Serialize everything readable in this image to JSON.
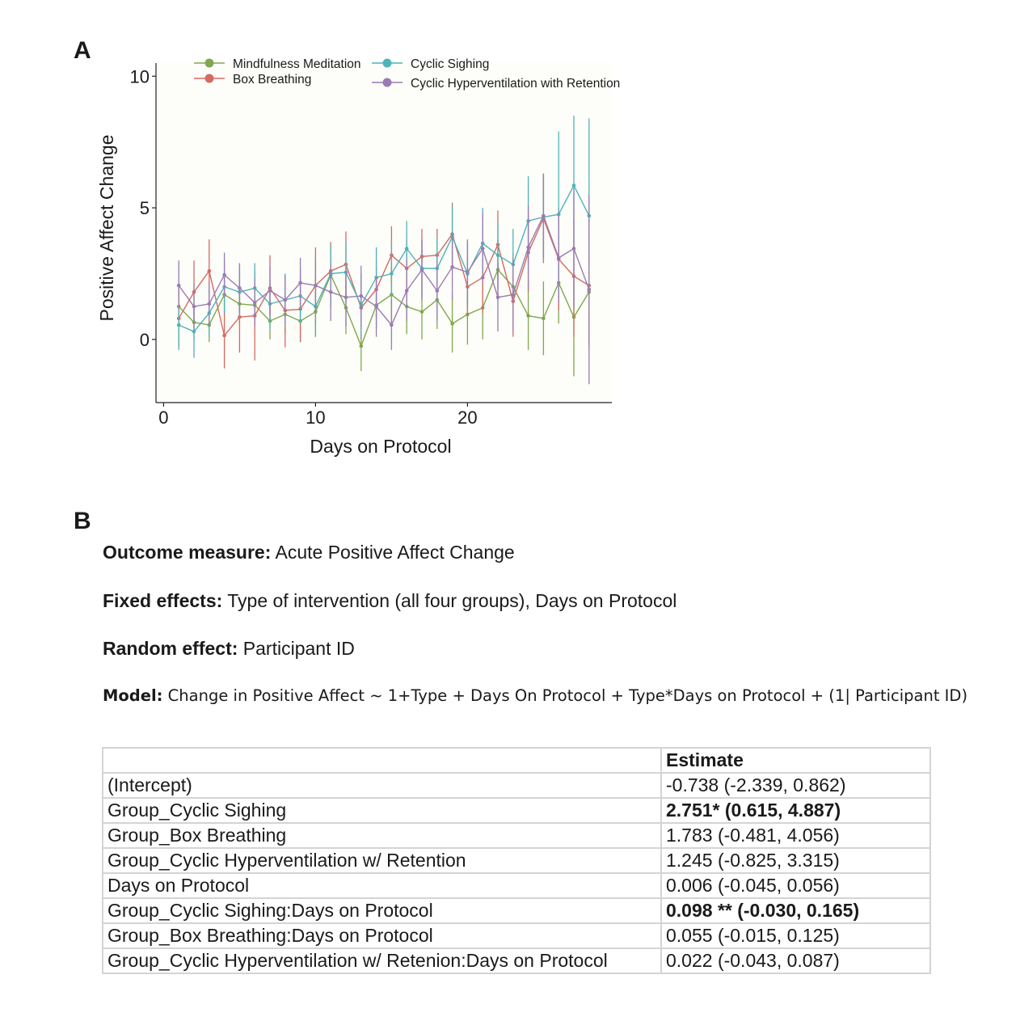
{
  "panel_a_label": "A",
  "panel_b_label": "B",
  "chart_data": {
    "type": "line",
    "xlabel": "Days on Protocol",
    "ylabel": "Positive Affect Change",
    "xlim": [
      -0.5,
      29.5
    ],
    "ylim": [
      -2.4,
      10.5
    ],
    "xticks": [
      0,
      10,
      20
    ],
    "yticks": [
      0,
      5,
      10
    ],
    "grid": false,
    "legend_position": "top",
    "error_bars": true,
    "series": [
      {
        "name": "Mindfulness Meditation",
        "color": "#7fa84f",
        "points": [
          {
            "x": 1,
            "y": 1.25,
            "lo": 0.3,
            "hi": 2.0
          },
          {
            "x": 2,
            "y": 0.65,
            "lo": 0.0,
            "hi": 1.3
          },
          {
            "x": 3,
            "y": 0.55,
            "lo": -0.1,
            "hi": 1.2
          },
          {
            "x": 4,
            "y": 1.7,
            "lo": 0.9,
            "hi": 2.5
          },
          {
            "x": 5,
            "y": 1.35,
            "lo": 0.6,
            "hi": 2.1
          },
          {
            "x": 6,
            "y": 1.3,
            "lo": 0.5,
            "hi": 2.0
          },
          {
            "x": 7,
            "y": 0.7,
            "lo": 0.0,
            "hi": 1.4
          },
          {
            "x": 8,
            "y": 0.95,
            "lo": 0.2,
            "hi": 1.7
          },
          {
            "x": 9,
            "y": 0.7,
            "lo": -0.1,
            "hi": 1.4
          },
          {
            "x": 10,
            "y": 1.05,
            "lo": 0.1,
            "hi": 2.0
          },
          {
            "x": 11,
            "y": 2.45,
            "lo": 1.2,
            "hi": 3.6
          },
          {
            "x": 12,
            "y": 1.2,
            "lo": 0.2,
            "hi": 2.2
          },
          {
            "x": 13,
            "y": -0.25,
            "lo": -1.2,
            "hi": 0.8
          },
          {
            "x": 14,
            "y": 1.3,
            "lo": 0.4,
            "hi": 2.2
          },
          {
            "x": 15,
            "y": 1.7,
            "lo": 0.6,
            "hi": 2.8
          },
          {
            "x": 16,
            "y": 1.25,
            "lo": 0.2,
            "hi": 2.3
          },
          {
            "x": 17,
            "y": 1.05,
            "lo": 0.0,
            "hi": 2.1
          },
          {
            "x": 18,
            "y": 1.5,
            "lo": 0.4,
            "hi": 2.6
          },
          {
            "x": 19,
            "y": 0.6,
            "lo": -0.5,
            "hi": 1.7
          },
          {
            "x": 20,
            "y": 0.95,
            "lo": -0.2,
            "hi": 2.1
          },
          {
            "x": 21,
            "y": 1.2,
            "lo": 0.0,
            "hi": 2.4
          },
          {
            "x": 22,
            "y": 2.65,
            "lo": 1.5,
            "hi": 3.8
          },
          {
            "x": 23,
            "y": 2.0,
            "lo": 0.7,
            "hi": 3.3
          },
          {
            "x": 24,
            "y": 0.9,
            "lo": -0.4,
            "hi": 2.2
          },
          {
            "x": 25,
            "y": 0.8,
            "lo": -0.6,
            "hi": 2.2
          },
          {
            "x": 26,
            "y": 2.15,
            "lo": 0.6,
            "hi": 3.7
          },
          {
            "x": 27,
            "y": 0.85,
            "lo": -1.4,
            "hi": 3.1
          },
          {
            "x": 28,
            "y": 1.8,
            "lo": -0.4,
            "hi": 4.0
          }
        ]
      },
      {
        "name": "Box Breathing",
        "color": "#d46a63",
        "points": [
          {
            "x": 1,
            "y": 0.8,
            "lo": -0.3,
            "hi": 1.9
          },
          {
            "x": 2,
            "y": 1.8,
            "lo": 0.6,
            "hi": 3.0
          },
          {
            "x": 3,
            "y": 2.6,
            "lo": 1.4,
            "hi": 3.8
          },
          {
            "x": 4,
            "y": 0.15,
            "lo": -1.1,
            "hi": 1.4
          },
          {
            "x": 5,
            "y": 0.85,
            "lo": -0.5,
            "hi": 2.2
          },
          {
            "x": 6,
            "y": 0.9,
            "lo": -0.8,
            "hi": 2.6
          },
          {
            "x": 7,
            "y": 1.95,
            "lo": 0.7,
            "hi": 3.2
          },
          {
            "x": 8,
            "y": 1.1,
            "lo": -0.3,
            "hi": 2.5
          },
          {
            "x": 9,
            "y": 1.15,
            "lo": -0.1,
            "hi": 2.4
          },
          {
            "x": 10,
            "y": 2.05,
            "lo": 0.6,
            "hi": 3.5
          },
          {
            "x": 11,
            "y": 2.6,
            "lo": 1.5,
            "hi": 3.7
          },
          {
            "x": 12,
            "y": 2.85,
            "lo": 1.6,
            "hi": 4.1
          },
          {
            "x": 13,
            "y": 1.2,
            "lo": 0.0,
            "hi": 2.4
          },
          {
            "x": 14,
            "y": 1.9,
            "lo": 0.8,
            "hi": 3.0
          },
          {
            "x": 15,
            "y": 3.2,
            "lo": 2.1,
            "hi": 4.3
          },
          {
            "x": 16,
            "y": 2.7,
            "lo": 1.6,
            "hi": 3.8
          },
          {
            "x": 17,
            "y": 3.15,
            "lo": 2.1,
            "hi": 4.2
          },
          {
            "x": 18,
            "y": 3.2,
            "lo": 2.2,
            "hi": 4.2
          },
          {
            "x": 19,
            "y": 4.0,
            "lo": 2.8,
            "hi": 5.2
          },
          {
            "x": 20,
            "y": 2.0,
            "lo": 0.8,
            "hi": 3.2
          },
          {
            "x": 21,
            "y": 2.35,
            "lo": 1.0,
            "hi": 3.7
          },
          {
            "x": 22,
            "y": 3.6,
            "lo": 2.3,
            "hi": 4.9
          },
          {
            "x": 23,
            "y": 1.45,
            "lo": 0.1,
            "hi": 2.8
          },
          {
            "x": 24,
            "y": 3.3,
            "lo": 1.8,
            "hi": 4.8
          },
          {
            "x": 25,
            "y": 4.6,
            "lo": 2.9,
            "hi": 6.3
          },
          {
            "x": 26,
            "y": 3.05,
            "lo": 1.1,
            "hi": 5.0
          },
          {
            "x": 27,
            "y": 2.4,
            "lo": 0.1,
            "hi": 4.6
          },
          {
            "x": 28,
            "y": 2.05,
            "lo": -0.2,
            "hi": 4.3
          }
        ]
      },
      {
        "name": "Cyclic Sighing",
        "color": "#4fb3b8",
        "points": [
          {
            "x": 1,
            "y": 0.55,
            "lo": -0.4,
            "hi": 1.5
          },
          {
            "x": 2,
            "y": 0.3,
            "lo": -0.7,
            "hi": 1.3
          },
          {
            "x": 3,
            "y": 1.0,
            "lo": 0.1,
            "hi": 1.9
          },
          {
            "x": 4,
            "y": 2.0,
            "lo": 1.0,
            "hi": 3.0
          },
          {
            "x": 5,
            "y": 1.8,
            "lo": 0.8,
            "hi": 2.8
          },
          {
            "x": 6,
            "y": 1.95,
            "lo": 1.0,
            "hi": 2.9
          },
          {
            "x": 7,
            "y": 1.35,
            "lo": 0.4,
            "hi": 2.3
          },
          {
            "x": 8,
            "y": 1.5,
            "lo": 0.5,
            "hi": 2.5
          },
          {
            "x": 9,
            "y": 1.65,
            "lo": 0.6,
            "hi": 2.7
          },
          {
            "x": 10,
            "y": 1.25,
            "lo": 0.1,
            "hi": 2.4
          },
          {
            "x": 11,
            "y": 2.5,
            "lo": 1.4,
            "hi": 3.6
          },
          {
            "x": 12,
            "y": 2.55,
            "lo": 1.4,
            "hi": 3.7
          },
          {
            "x": 13,
            "y": 1.3,
            "lo": 0.1,
            "hi": 2.5
          },
          {
            "x": 14,
            "y": 2.35,
            "lo": 1.2,
            "hi": 3.5
          },
          {
            "x": 15,
            "y": 2.5,
            "lo": 1.3,
            "hi": 3.7
          },
          {
            "x": 16,
            "y": 3.45,
            "lo": 2.4,
            "hi": 4.5
          },
          {
            "x": 17,
            "y": 2.7,
            "lo": 1.6,
            "hi": 3.8
          },
          {
            "x": 18,
            "y": 2.7,
            "lo": 1.5,
            "hi": 3.9
          },
          {
            "x": 19,
            "y": 3.9,
            "lo": 2.7,
            "hi": 5.1
          },
          {
            "x": 20,
            "y": 2.5,
            "lo": 1.3,
            "hi": 3.7
          },
          {
            "x": 21,
            "y": 3.65,
            "lo": 2.3,
            "hi": 5.0
          },
          {
            "x": 22,
            "y": 3.2,
            "lo": 1.9,
            "hi": 4.5
          },
          {
            "x": 23,
            "y": 2.85,
            "lo": 1.5,
            "hi": 4.2
          },
          {
            "x": 24,
            "y": 4.5,
            "lo": 2.8,
            "hi": 6.2
          },
          {
            "x": 25,
            "y": 4.65,
            "lo": 3.0,
            "hi": 6.3
          },
          {
            "x": 26,
            "y": 4.75,
            "lo": 1.6,
            "hi": 7.9
          },
          {
            "x": 27,
            "y": 5.85,
            "lo": 3.2,
            "hi": 8.5
          },
          {
            "x": 28,
            "y": 4.7,
            "lo": 1.0,
            "hi": 8.4
          }
        ]
      },
      {
        "name": "Cyclic Hyperventilation with Retention",
        "color": "#9b7bb5",
        "points": [
          {
            "x": 1,
            "y": 2.05,
            "lo": 1.1,
            "hi": 3.0
          },
          {
            "x": 2,
            "y": 1.25,
            "lo": 0.4,
            "hi": 2.1
          },
          {
            "x": 3,
            "y": 1.35,
            "lo": 0.5,
            "hi": 2.2
          },
          {
            "x": 4,
            "y": 2.45,
            "lo": 1.6,
            "hi": 3.3
          },
          {
            "x": 5,
            "y": 1.95,
            "lo": 1.0,
            "hi": 2.9
          },
          {
            "x": 6,
            "y": 1.4,
            "lo": 0.5,
            "hi": 2.3
          },
          {
            "x": 7,
            "y": 1.85,
            "lo": 0.9,
            "hi": 2.8
          },
          {
            "x": 8,
            "y": 1.5,
            "lo": 0.6,
            "hi": 2.4
          },
          {
            "x": 9,
            "y": 2.15,
            "lo": 1.2,
            "hi": 3.1
          },
          {
            "x": 10,
            "y": 2.05,
            "lo": 1.0,
            "hi": 3.1
          },
          {
            "x": 11,
            "y": 1.8,
            "lo": 0.7,
            "hi": 2.9
          },
          {
            "x": 12,
            "y": 1.6,
            "lo": 0.5,
            "hi": 2.7
          },
          {
            "x": 13,
            "y": 1.65,
            "lo": 0.5,
            "hi": 2.8
          },
          {
            "x": 14,
            "y": 1.25,
            "lo": 0.1,
            "hi": 2.4
          },
          {
            "x": 15,
            "y": 0.55,
            "lo": -0.4,
            "hi": 1.5
          },
          {
            "x": 16,
            "y": 1.85,
            "lo": 0.7,
            "hi": 3.0
          },
          {
            "x": 17,
            "y": 2.65,
            "lo": 1.5,
            "hi": 3.8
          },
          {
            "x": 18,
            "y": 1.85,
            "lo": 0.7,
            "hi": 3.0
          },
          {
            "x": 19,
            "y": 2.75,
            "lo": 1.5,
            "hi": 4.0
          },
          {
            "x": 20,
            "y": 2.55,
            "lo": 1.3,
            "hi": 3.8
          },
          {
            "x": 21,
            "y": 3.45,
            "lo": 2.1,
            "hi": 4.8
          },
          {
            "x": 22,
            "y": 1.6,
            "lo": 0.3,
            "hi": 2.9
          },
          {
            "x": 23,
            "y": 1.7,
            "lo": 0.3,
            "hi": 3.1
          },
          {
            "x": 24,
            "y": 3.5,
            "lo": 1.9,
            "hi": 5.1
          },
          {
            "x": 25,
            "y": 4.7,
            "lo": 3.1,
            "hi": 6.3
          },
          {
            "x": 26,
            "y": 3.1,
            "lo": 1.4,
            "hi": 4.8
          },
          {
            "x": 27,
            "y": 3.45,
            "lo": 1.2,
            "hi": 5.7
          },
          {
            "x": 28,
            "y": 1.9,
            "lo": -1.7,
            "hi": 5.5
          }
        ]
      }
    ]
  },
  "model_info": {
    "outcome_label": "Outcome measure:",
    "outcome_value": "Acute Positive Affect Change",
    "fixed_label": "Fixed effects:",
    "fixed_value": "Type of intervention (all four groups), Days on Protocol",
    "random_label": "Random effect:",
    "random_value": "Participant ID",
    "model_label": "Model:",
    "model_value": "Change in Positive Affect ~ 1+Type + Days On Protocol + Type*Days on Protocol + (1| Participant ID)"
  },
  "table": {
    "header": "Estimate",
    "rows": [
      {
        "term": "(Intercept)",
        "estimate": "-0.738 (-2.339, 0.862)",
        "bold": false
      },
      {
        "term": "Group_Cyclic Sighing",
        "estimate": "2.751* (0.615, 4.887)",
        "bold": true
      },
      {
        "term": "Group_Box Breathing",
        "estimate": "1.783 (-0.481, 4.056)",
        "bold": false
      },
      {
        "term": "Group_Cyclic Hyperventilation w/ Retention",
        "estimate": "1.245 (-0.825, 3.315)",
        "bold": false
      },
      {
        "term": "Days on Protocol",
        "estimate": "0.006 (-0.045, 0.056)",
        "bold": false
      },
      {
        "term": "Group_Cyclic Sighing:Days on Protocol",
        "estimate": "0.098 ** (-0.030, 0.165)",
        "bold": true
      },
      {
        "term": "Group_Box Breathing:Days on Protocol",
        "estimate": "0.055 (-0.015, 0.125)",
        "bold": false
      },
      {
        "term": "Group_Cyclic Hyperventilation w/ Retenion:Days on Protocol",
        "estimate": "0.022 (-0.043, 0.087)",
        "bold": false
      }
    ]
  }
}
